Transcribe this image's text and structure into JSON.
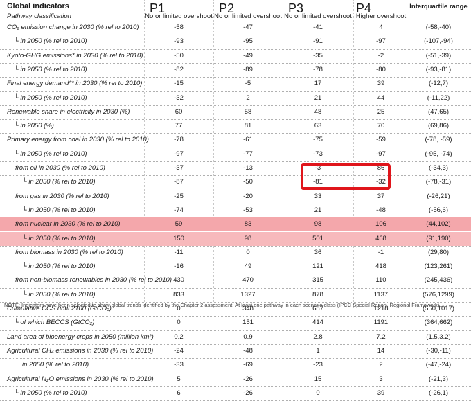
{
  "header": {
    "title": "Global indicators",
    "subtitle": "Pathway classification",
    "columns": [
      {
        "name": "P1",
        "sub": "No or limited overshoot"
      },
      {
        "name": "P2",
        "sub": "No or limited overshoot"
      },
      {
        "name": "P3",
        "sub": "No or limited overshoot"
      },
      {
        "name": "P4",
        "sub": "Higher overshoot"
      }
    ],
    "iq_title": "Interquartile range"
  },
  "rows": [
    {
      "label": "CO₂ emission change in 2030 (% rel to 2010)",
      "style": "italic",
      "p1": "-58",
      "p2": "-47",
      "p3": "-41",
      "p4": "4",
      "iq": "(-58,-40)"
    },
    {
      "label": "└ in 2050 (% rel to 2010)",
      "style": "sub-italic",
      "p1": "-93",
      "p2": "-95",
      "p3": "-91",
      "p4": "-97",
      "iq": "(-107,-94)"
    },
    {
      "label": "Kyoto-GHG emissions* in 2030 (% rel to 2010)",
      "style": "italic",
      "p1": "-50",
      "p2": "-49",
      "p3": "-35",
      "p4": "-2",
      "iq": "(-51,-39)"
    },
    {
      "label": "└ in 2050 (% rel to 2010)",
      "style": "sub-italic",
      "p1": "-82",
      "p2": "-89",
      "p3": "-78",
      "p4": "-80",
      "iq": "(-93,-81)"
    },
    {
      "label": "Final energy demand** in 2030 (% rel to 2010)",
      "style": "italic",
      "p1": "-15",
      "p2": "-5",
      "p3": "17",
      "p4": "39",
      "iq": "(-12,7)"
    },
    {
      "label": "└ in 2050 (% rel to 2010)",
      "style": "sub-italic",
      "p1": "-32",
      "p2": "2",
      "p3": "21",
      "p4": "44",
      "iq": "(-11,22)"
    },
    {
      "label": "Renewable share in electricity in 2030 (%)",
      "style": "italic",
      "p1": "60",
      "p2": "58",
      "p3": "48",
      "p4": "25",
      "iq": "(47,65)"
    },
    {
      "label": "└ in 2050 (%)",
      "style": "sub-italic",
      "p1": "77",
      "p2": "81",
      "p3": "63",
      "p4": "70",
      "iq": "(69,86)"
    },
    {
      "label": "Primary energy from coal in 2030 (% rel to 2010)",
      "style": "italic",
      "p1": "-78",
      "p2": "-61",
      "p3": "-75",
      "p4": "-59",
      "iq": "(-78, -59)"
    },
    {
      "label": "└ in 2050 (% rel to 2010)",
      "style": "sub-italic",
      "p1": "-97",
      "p2": "-77",
      "p3": "-73",
      "p4": "-97",
      "iq": "(-95, -74)"
    },
    {
      "label": "from oil in 2030  (% rel to 2010)",
      "style": "sub2-italic",
      "p1": "-37",
      "p2": "-13",
      "p3": "-3",
      "p4": "86",
      "iq": "(-34,3)"
    },
    {
      "label": "└ in 2050  (% rel to 2010)",
      "style": "sub3-italic",
      "p1": "-87",
      "p2": "-50",
      "p3": "-81",
      "p4": "-32",
      "iq": "(-78,-31)"
    },
    {
      "label": "from gas in 2030  (% rel to 2010)",
      "style": "sub2-italic",
      "p1": "-25",
      "p2": "-20",
      "p3": "33",
      "p4": "37",
      "iq": "(-26,21)"
    },
    {
      "label": "└ in 2050  (% rel to 2010)",
      "style": "sub3-italic",
      "p1": "-74",
      "p2": "-53",
      "p3": "21",
      "p4": "-48",
      "iq": "(-56,6)"
    },
    {
      "label": "from nuclear in 2030  (% rel to 2010)",
      "style": "sub2-italic",
      "highlight": "hl",
      "p1": "59",
      "p2": "83",
      "p3": "98",
      "p4": "106",
      "iq": "(44,102)"
    },
    {
      "label": "└ in 2050  (% rel to 2010)",
      "style": "sub3-italic",
      "highlight": "hl2",
      "p1": "150",
      "p2": "98",
      "p3": "501",
      "p4": "468",
      "iq": "(91,190)"
    },
    {
      "label": "from biomass in 2030  (% rel to 2010)",
      "style": "sub2-italic",
      "p1": "-11",
      "p2": "0",
      "p3": "36",
      "p4": "-1",
      "iq": "(29,80)"
    },
    {
      "label": "└ in 2050  (% rel to 2010)",
      "style": "sub3-italic",
      "p1": "-16",
      "p2": "49",
      "p3": "121",
      "p4": "418",
      "iq": "(123,261)"
    },
    {
      "label": "from non-biomass renewables in 2030  (% rel to 2010)",
      "style": "sub2-italic",
      "p1": "430",
      "p2": "470",
      "p3": "315",
      "p4": "110",
      "iq": "(245,436)"
    },
    {
      "label": "└ in 2050  (% rel to 2010)",
      "style": "sub3-italic",
      "p1": "833",
      "p2": "1327",
      "p3": "878",
      "p4": "1137",
      "iq": "(576,1299)"
    },
    {
      "label": "Cumulative CCS until 2100 (GtCO₂)",
      "style": "italic",
      "p1": "0",
      "p2": "348",
      "p3": "687",
      "p4": "1218",
      "iq": "(550,1017)"
    },
    {
      "label": "└ of which BECCS (GtCO₂)",
      "style": "sub-italic",
      "p1": "0",
      "p2": "151",
      "p3": "414",
      "p4": "1191",
      "iq": "(364,662)"
    },
    {
      "label": "Land area of bioenergy crops in 2050 (million km²)",
      "style": "italic",
      "p1": "0.2",
      "p2": "0.9",
      "p3": "2.8",
      "p4": "7.2",
      "iq": "(1.5,3.2)"
    },
    {
      "label": "Agricultural CH₄ emissions in 2030 (% rel to 2010)",
      "style": "italic",
      "p1": "-24",
      "p2": "-48",
      "p3": "1",
      "p4": "14",
      "iq": "(-30,-11)"
    },
    {
      "label": "in 2050 (% rel to 2010)",
      "style": "sub3-italic",
      "p1": "-33",
      "p2": "-69",
      "p3": "-23",
      "p4": "2",
      "iq": "(-47,-24)"
    },
    {
      "label": "Agricultural N₂O emissions in 2030 (% rel to 2010)",
      "style": "italic",
      "p1": "5",
      "p2": "-26",
      "p3": "15",
      "p4": "3",
      "iq": "(-21,3)"
    },
    {
      "label": "└ in 2050 (% rel to 2010)",
      "style": "sub-italic",
      "p1": "6",
      "p2": "-26",
      "p3": "0",
      "p4": "39",
      "iq": "(-26,1)"
    }
  ],
  "footnote": "NOTE: Indicators have been selected to show global trends identified by the Chapter 2 assessment.                                          At least one pathway in each scenario class (IPCC Special Report, Regional Framework)..."
}
